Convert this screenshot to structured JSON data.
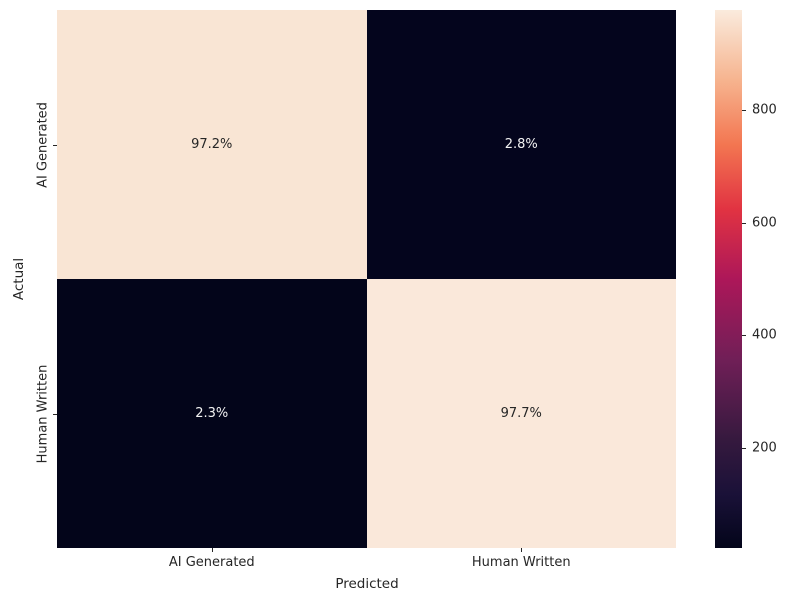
{
  "figure": {
    "background": "#ffffff"
  },
  "chart_data": {
    "type": "heatmap",
    "subtype": "confusion-matrix",
    "title": "",
    "xlabel": "Predicted",
    "ylabel": "Actual",
    "x_categories": [
      "AI Generated",
      "Human Written"
    ],
    "y_categories": [
      "AI Generated",
      "Human Written"
    ],
    "cells": [
      [
        {
          "row": "AI Generated",
          "col": "AI Generated",
          "label": "97.2%",
          "value": 972
        },
        {
          "row": "AI Generated",
          "col": "Human Written",
          "label": "2.8%",
          "value": 28
        }
      ],
      [
        {
          "row": "Human Written",
          "col": "AI Generated",
          "label": "2.3%",
          "value": 23
        },
        {
          "row": "Human Written",
          "col": "Human Written",
          "label": "97.7%",
          "value": 977
        }
      ]
    ],
    "cell_colors": [
      [
        "#F9E5D4",
        "#04051D"
      ],
      [
        "#03051A",
        "#FAE8DA"
      ]
    ],
    "annotation_colors": {
      "on_light": "#262626",
      "on_dark": "#F2F2F2"
    },
    "colorbar": {
      "vmin": 23,
      "vmax": 977,
      "ticks": [
        200,
        400,
        600,
        800
      ],
      "colormap": "rocket",
      "gradient_stops": [
        {
          "t": 0.0,
          "color": "#03051A"
        },
        {
          "t": 0.1,
          "color": "#1A1138"
        },
        {
          "t": 0.2,
          "color": "#35193E"
        },
        {
          "t": 0.35,
          "color": "#701F57"
        },
        {
          "t": 0.5,
          "color": "#AD1759"
        },
        {
          "t": 0.63,
          "color": "#E13342"
        },
        {
          "t": 0.75,
          "color": "#F37651"
        },
        {
          "t": 0.87,
          "color": "#F6B48F"
        },
        {
          "t": 1.0,
          "color": "#FAEBDD"
        }
      ]
    },
    "legend": null,
    "grid": false
  }
}
